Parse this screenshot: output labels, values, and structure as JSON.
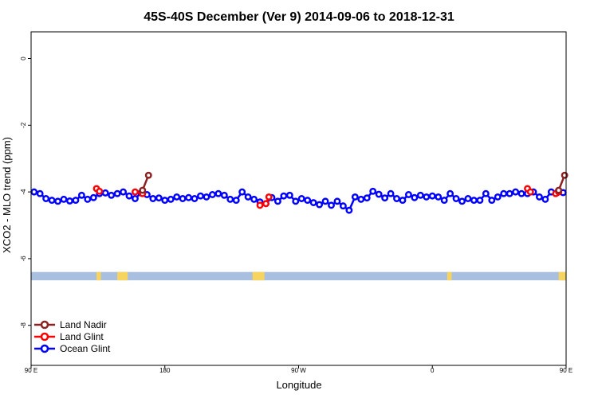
{
  "chart_data": {
    "type": "line",
    "title": "45S-40S December (Ver 9)   2014-09-06 to 2018-12-31",
    "xlabel": "Longitude",
    "ylabel": "XCO2 - MLO trend (ppm)",
    "xlim": [
      90,
      450
    ],
    "ylim": [
      -9.2,
      0.8
    ],
    "x_ticks": [
      {
        "value": 90,
        "label": "90 E"
      },
      {
        "value": 180,
        "label": "180"
      },
      {
        "value": 270,
        "label": "90 W"
      },
      {
        "value": 360,
        "label": "0"
      },
      {
        "value": 450,
        "label": "90 E"
      }
    ],
    "y_ticks": [
      {
        "value": 0,
        "label": "0"
      },
      {
        "value": -2,
        "label": "-2"
      },
      {
        "value": -4,
        "label": "-4"
      },
      {
        "value": -6,
        "label": "-6"
      },
      {
        "value": -8,
        "label": "-8"
      }
    ],
    "land_band": {
      "y_range": [
        -6.65,
        -6.4
      ],
      "ocean_color": "#a9bfdf",
      "land_color": "#f7d35f",
      "land_segments": [
        [
          134,
          137
        ],
        [
          148,
          155
        ],
        [
          239,
          247
        ],
        [
          370,
          373
        ],
        [
          445,
          450
        ]
      ]
    },
    "series": [
      {
        "name": "Land Nadir",
        "color": "#8b2323",
        "segments": [
          [
            {
              "x": 165,
              "y": -3.95
            },
            {
              "x": 169,
              "y": -3.5
            }
          ],
          [
            {
              "x": 445,
              "y": -3.95
            },
            {
              "x": 449,
              "y": -3.5
            }
          ]
        ]
      },
      {
        "name": "Land Glint",
        "color": "#ff0000",
        "segments": [
          [
            {
              "x": 134,
              "y": -3.9
            },
            {
              "x": 136,
              "y": -3.98
            }
          ],
          [
            {
              "x": 160,
              "y": -4.0
            },
            {
              "x": 165,
              "y": -4.05
            }
          ],
          [
            {
              "x": 244,
              "y": -4.4
            },
            {
              "x": 248,
              "y": -4.35
            },
            {
              "x": 250,
              "y": -4.15
            }
          ],
          [
            {
              "x": 424,
              "y": -3.9
            },
            {
              "x": 426,
              "y": -4.0
            }
          ],
          [
            {
              "x": 443,
              "y": -4.05
            },
            {
              "x": 445,
              "y": -4.0
            }
          ]
        ]
      },
      {
        "name": "Ocean Glint",
        "color": "#0000ff",
        "x": [
          92,
          96,
          100,
          104,
          108,
          112,
          116,
          120,
          124,
          128,
          132,
          136,
          140,
          144,
          148,
          152,
          156,
          160,
          164,
          168,
          172,
          176,
          180,
          184,
          188,
          192,
          196,
          200,
          204,
          208,
          212,
          216,
          220,
          224,
          228,
          232,
          236,
          240,
          244,
          248,
          252,
          256,
          260,
          264,
          268,
          272,
          276,
          280,
          284,
          288,
          292,
          296,
          300,
          304,
          308,
          312,
          316,
          320,
          324,
          328,
          332,
          336,
          340,
          344,
          348,
          352,
          356,
          360,
          364,
          368,
          372,
          376,
          380,
          384,
          388,
          392,
          396,
          400,
          404,
          408,
          412,
          416,
          420,
          424,
          428,
          432,
          436,
          440,
          444,
          448
        ],
        "values": [
          -4.0,
          -4.05,
          -4.2,
          -4.25,
          -4.28,
          -4.22,
          -4.27,
          -4.25,
          -4.1,
          -4.22,
          -4.17,
          -4.05,
          -4.03,
          -4.1,
          -4.05,
          -4.0,
          -4.12,
          -4.2,
          -4.03,
          -4.08,
          -4.2,
          -4.18,
          -4.25,
          -4.22,
          -4.15,
          -4.2,
          -4.17,
          -4.2,
          -4.12,
          -4.15,
          -4.08,
          -4.05,
          -4.1,
          -4.22,
          -4.25,
          -4.0,
          -4.15,
          -4.22,
          -4.3,
          -4.35,
          -4.17,
          -4.28,
          -4.12,
          -4.1,
          -4.28,
          -4.2,
          -4.25,
          -4.32,
          -4.38,
          -4.28,
          -4.4,
          -4.28,
          -4.42,
          -4.55,
          -4.15,
          -4.22,
          -4.18,
          -3.98,
          -4.07,
          -4.18,
          -4.05,
          -4.2,
          -4.25,
          -4.08,
          -4.17,
          -4.1,
          -4.15,
          -4.12,
          -4.15,
          -4.25,
          -4.05,
          -4.2,
          -4.28,
          -4.2,
          -4.25,
          -4.25,
          -4.05,
          -4.25,
          -4.15,
          -4.05,
          -4.05,
          -4.0,
          -4.05,
          -4.05,
          -4.0,
          -4.15,
          -4.22,
          -4.0,
          -4.02,
          -4.02
        ]
      }
    ],
    "legend": {
      "position": "bottom-left",
      "entries": [
        {
          "label": "Land Nadir",
          "color": "#8b2323"
        },
        {
          "label": "Land Glint",
          "color": "#ff0000"
        },
        {
          "label": "Ocean Glint",
          "color": "#0000ff"
        }
      ]
    }
  }
}
